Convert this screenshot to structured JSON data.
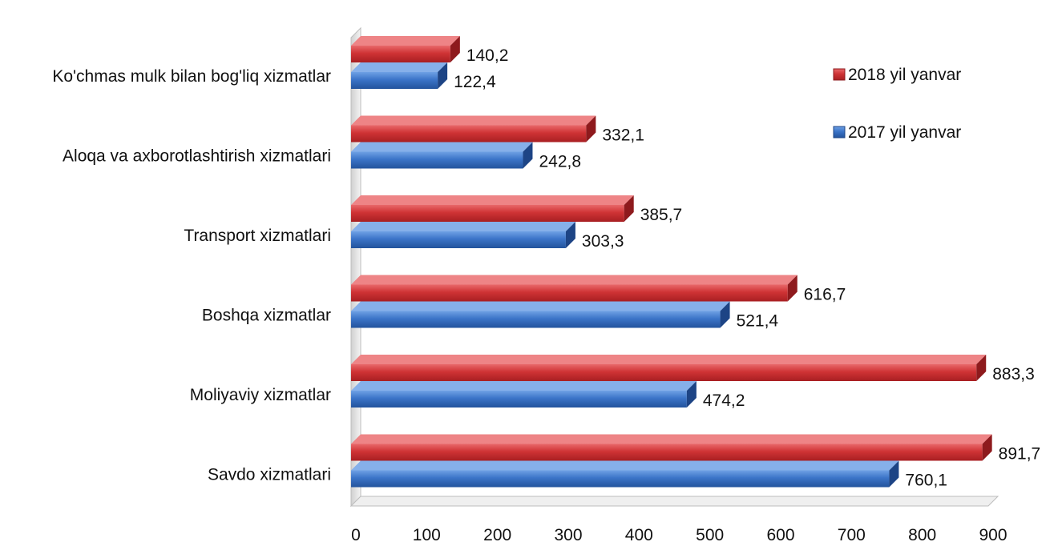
{
  "chart_data": {
    "type": "bar",
    "orientation": "horizontal",
    "categories": [
      "Ko'chmas mulk bilan bog'liq xizmatlar",
      "Aloqa va axborotlashtirish xizmatlari",
      "Transport xizmatlari",
      "Boshqa xizmatlar",
      "Moliyaviy xizmatlar",
      "Savdo xizmatlari"
    ],
    "series": [
      {
        "name": "2018 yil yanvar",
        "color": "#d0393c",
        "values": [
          140.2,
          332.1,
          385.7,
          616.7,
          883.3,
          891.7
        ],
        "labels": [
          "140,2",
          "332,1",
          "385,7",
          "616,7",
          "883,3",
          "891,7"
        ]
      },
      {
        "name": "2017 yil yanvar",
        "color": "#3e78cc",
        "values": [
          122.4,
          242.8,
          303.3,
          521.4,
          474.2,
          760.1
        ],
        "labels": [
          "122,4",
          "242,8",
          "303,3",
          "521,4",
          "474,2",
          "760,1"
        ]
      }
    ],
    "xlim": [
      0,
      900
    ],
    "xticks": [
      "0",
      "100",
      "200",
      "300",
      "400",
      "500",
      "600",
      "700",
      "800",
      "900"
    ],
    "title": "",
    "xlabel": "",
    "ylabel": "",
    "grid": false,
    "legend_position": "top-right",
    "style": "3d-bar"
  }
}
